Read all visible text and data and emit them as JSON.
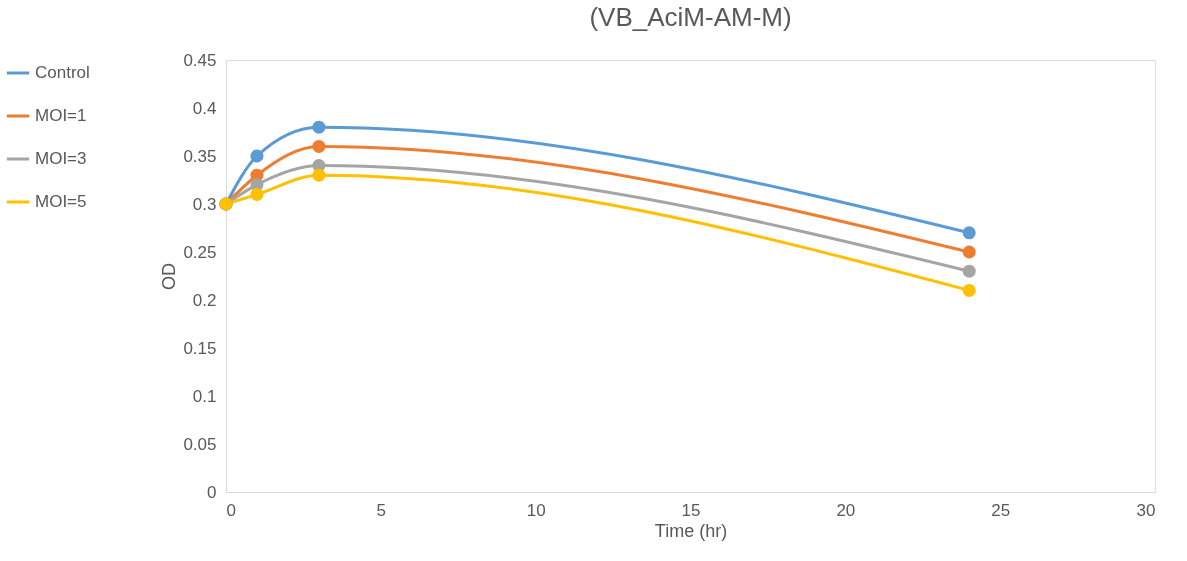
{
  "chart_data": {
    "type": "line",
    "title": "(VB_AciM-AM-M)",
    "xlabel": "Time (hr)",
    "ylabel": "OD",
    "x": [
      0,
      1,
      3,
      24
    ],
    "series": [
      {
        "name": "Control",
        "color": "#5b9bd5",
        "values": [
          0.3,
          0.35,
          0.38,
          0.27
        ]
      },
      {
        "name": "MOI=1",
        "color": "#ed7d31",
        "values": [
          0.3,
          0.33,
          0.36,
          0.25
        ]
      },
      {
        "name": "MOI=3",
        "color": "#a5a5a5",
        "values": [
          0.3,
          0.32,
          0.34,
          0.23
        ]
      },
      {
        "name": "MOI=5",
        "color": "#ffc000",
        "values": [
          0.3,
          0.31,
          0.33,
          0.21
        ]
      }
    ],
    "xlim": [
      0,
      30
    ],
    "xticks": [
      0,
      5,
      10,
      15,
      20,
      25,
      30
    ],
    "ylim": [
      0,
      0.45
    ],
    "yticks": [
      0,
      0.05,
      0.1,
      0.15,
      0.2,
      0.25,
      0.3,
      0.35,
      0.4,
      0.45
    ],
    "grid": false,
    "legend": "left",
    "marker": "circle",
    "line_style": "solid"
  }
}
